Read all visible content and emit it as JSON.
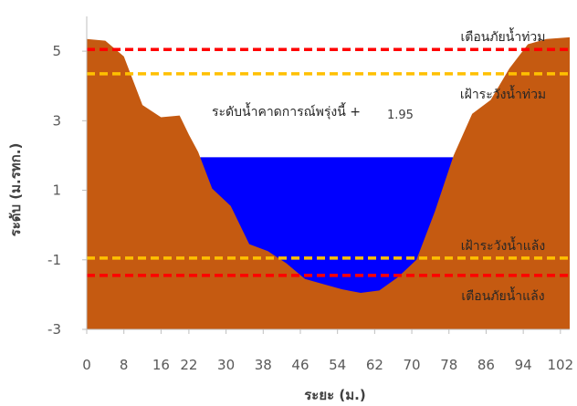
{
  "chart_data": {
    "type": "area",
    "title": "",
    "xlabel": "ระยะ (ม.)",
    "ylabel": "ระดับ (ม.รทก.)",
    "xlim": [
      0,
      104
    ],
    "ylim": [
      -3,
      6
    ],
    "x_ticks": [
      0,
      8,
      16,
      22,
      30,
      38,
      46,
      54,
      62,
      70,
      78,
      86,
      94,
      102
    ],
    "y_ticks": [
      5,
      3,
      1,
      -1,
      -3
    ],
    "grid": false,
    "series": [
      {
        "type": "area",
        "color": "#C55A11",
        "x": [
          0,
          4,
          8,
          12,
          16,
          20,
          22,
          24,
          27,
          31,
          35,
          39,
          43,
          47,
          51,
          55,
          59,
          63,
          67,
          71,
          75,
          79,
          83,
          87,
          91,
          95,
          99,
          104
        ],
        "y": [
          5.35,
          5.3,
          4.85,
          3.45,
          3.1,
          3.15,
          2.6,
          2.1,
          1.05,
          0.55,
          -0.55,
          -0.75,
          -1.1,
          -1.55,
          -1.7,
          -1.85,
          -1.95,
          -1.88,
          -1.5,
          -1.0,
          0.4,
          2.0,
          3.2,
          3.6,
          4.5,
          5.2,
          5.35,
          5.4
        ]
      },
      {
        "type": "water",
        "color": "#0000FF",
        "level": 1.95
      }
    ],
    "reference_lines": [
      {
        "label": "เตือนภัยน้ำท่วม",
        "y": 5.05,
        "color": "#FF0000"
      },
      {
        "label": "เฝ้าระวังน้ำท่วม",
        "y": 4.35,
        "color": "#FFC000"
      },
      {
        "label": "เฝ้าระวังน้ำแล้ง",
        "y": -0.95,
        "color": "#FFC000"
      },
      {
        "label": "เตือนภัยน้ำแล้ง",
        "y": -1.45,
        "color": "#FF0000"
      }
    ],
    "annotation": {
      "text": "ระดับน้ำคาดการณ์พรุ่งนี้ +",
      "value": "1.95"
    }
  }
}
